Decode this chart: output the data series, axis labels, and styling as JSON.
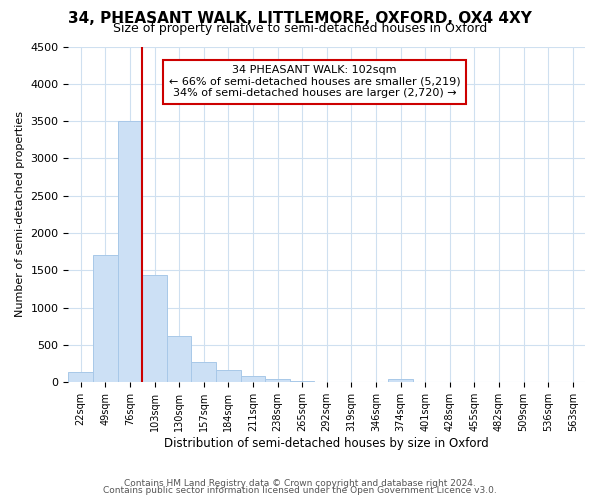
{
  "title": "34, PHEASANT WALK, LITTLEMORE, OXFORD, OX4 4XY",
  "subtitle": "Size of property relative to semi-detached houses in Oxford",
  "xlabel": "Distribution of semi-detached houses by size in Oxford",
  "ylabel": "Number of semi-detached properties",
  "bar_color": "#cce0f5",
  "bar_edge_color": "#a8c8e8",
  "bin_labels": [
    "22sqm",
    "49sqm",
    "76sqm",
    "103sqm",
    "130sqm",
    "157sqm",
    "184sqm",
    "211sqm",
    "238sqm",
    "265sqm",
    "292sqm",
    "319sqm",
    "346sqm",
    "374sqm",
    "401sqm",
    "428sqm",
    "455sqm",
    "482sqm",
    "509sqm",
    "536sqm",
    "563sqm"
  ],
  "bar_heights": [
    140,
    1700,
    3500,
    1440,
    620,
    270,
    160,
    90,
    45,
    20,
    10,
    5,
    3,
    40,
    0,
    0,
    0,
    0,
    0,
    0,
    0
  ],
  "ylim": [
    0,
    4500
  ],
  "yticks": [
    0,
    500,
    1000,
    1500,
    2000,
    2500,
    3000,
    3500,
    4000,
    4500
  ],
  "vline_x": 2.5,
  "annotation_title": "34 PHEASANT WALK: 102sqm",
  "annotation_line1": "← 66% of semi-detached houses are smaller (5,219)",
  "annotation_line2": "34% of semi-detached houses are larger (2,720) →",
  "vline_color": "#cc0000",
  "annotation_box_color": "#ffffff",
  "annotation_box_edge": "#cc0000",
  "footer_line1": "Contains HM Land Registry data © Crown copyright and database right 2024.",
  "footer_line2": "Contains public sector information licensed under the Open Government Licence v3.0.",
  "background_color": "#ffffff",
  "grid_color": "#cfe0f0"
}
